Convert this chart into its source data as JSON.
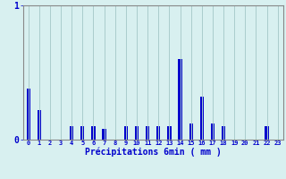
{
  "hours": [
    0,
    1,
    2,
    3,
    4,
    5,
    6,
    7,
    8,
    9,
    10,
    11,
    12,
    13,
    14,
    15,
    16,
    17,
    18,
    19,
    20,
    21,
    22,
    23
  ],
  "values": [
    0.38,
    0.22,
    0.0,
    0.0,
    0.1,
    0.1,
    0.1,
    0.08,
    0.0,
    0.1,
    0.1,
    0.1,
    0.1,
    0.1,
    0.6,
    0.12,
    0.32,
    0.12,
    0.1,
    0.0,
    0.0,
    0.0,
    0.1,
    0.0
  ],
  "bar_color": "#0000cc",
  "background_color": "#d8f0f0",
  "grid_color": "#aacccc",
  "axis_color": "#888888",
  "text_color": "#0000cc",
  "xlabel": "Précipitations 6min ( mm )",
  "ylim": [
    0,
    1.0
  ],
  "yticks": [
    0,
    1
  ],
  "xlim": [
    -0.5,
    23.5
  ],
  "bar_width": 0.35
}
